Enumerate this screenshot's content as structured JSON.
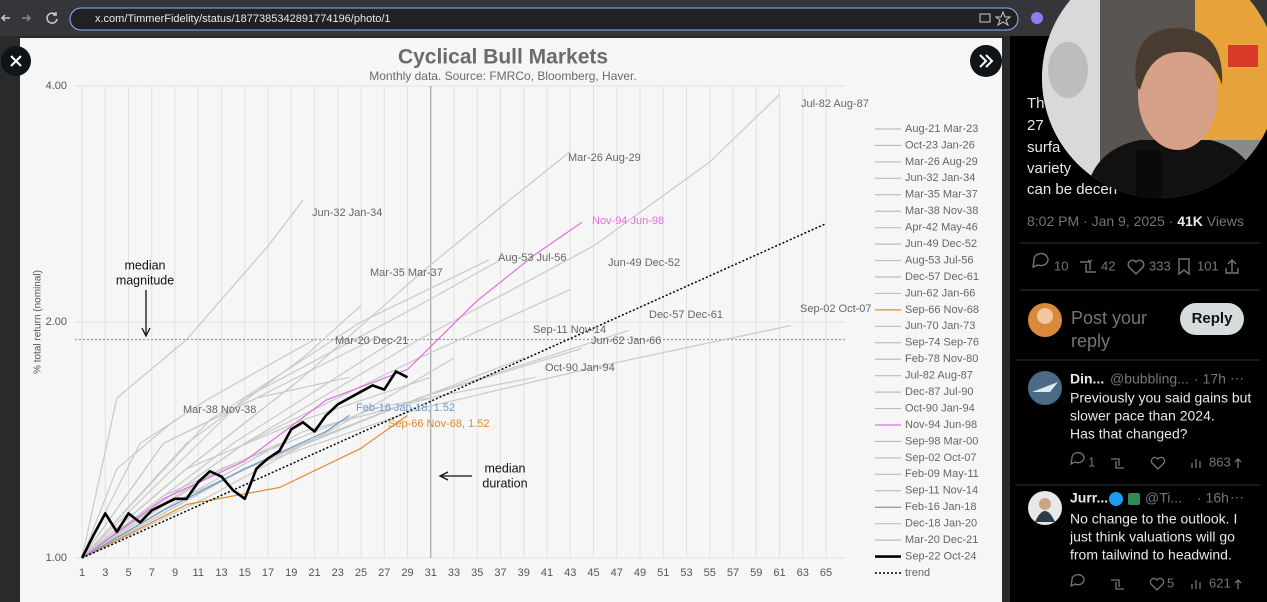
{
  "browser": {
    "url": "x.com/TimmerFidelity/status/1877385342891774196/photo/1"
  },
  "chart_data": {
    "type": "line",
    "title": "Cyclical Bull Markets",
    "subtitle": "Monthly data.  Source: FMRCo, Bloomberg, Haver.",
    "ylabel": "% total return (nominal)",
    "y_scale": "log",
    "xlim": [
      1,
      65
    ],
    "ylim": [
      1,
      4
    ],
    "xticks": [
      1,
      3,
      5,
      7,
      9,
      11,
      13,
      15,
      17,
      19,
      21,
      23,
      25,
      27,
      29,
      31,
      33,
      35,
      37,
      39,
      41,
      43,
      45,
      47,
      49,
      51,
      53,
      55,
      57,
      59,
      61,
      63,
      65
    ],
    "yticks": [
      {
        "value": 1,
        "label": "1.00"
      },
      {
        "value": 2,
        "label": "2.00"
      },
      {
        "value": 4,
        "label": "4.00"
      }
    ],
    "grid": true,
    "median_magnitude": 1.9,
    "median_duration": 31,
    "series": [
      {
        "name": "Aug-21 Mar-23",
        "color": "#c9c9c9",
        "x": [
          1,
          10,
          20
        ],
        "values": [
          1,
          1.3,
          1.7
        ]
      },
      {
        "name": "Oct-23 Jan-26",
        "color": "#c9c9c9",
        "x": [
          1,
          14,
          28
        ],
        "values": [
          1,
          1.4,
          1.9
        ]
      },
      {
        "name": "Mar-26 Aug-29",
        "color": "#c9c9c9",
        "x": [
          1,
          10,
          20,
          30,
          37,
          43
        ],
        "values": [
          1,
          1.3,
          1.7,
          2.3,
          2.8,
          3.3
        ]
      },
      {
        "name": "Jun-32 Jan-34",
        "color": "#c9c9c9",
        "x": [
          1,
          4,
          10,
          17,
          20
        ],
        "values": [
          1,
          1.6,
          1.9,
          2.5,
          2.86
        ]
      },
      {
        "name": "Mar-35 Mar-37",
        "color": "#c9c9c9",
        "x": [
          1,
          10,
          20,
          25
        ],
        "values": [
          1,
          1.4,
          1.8,
          2.1
        ]
      },
      {
        "name": "Mar-38 Nov-38",
        "color": "#c9c9c9",
        "x": [
          1,
          4,
          9
        ],
        "values": [
          1,
          1.3,
          1.5
        ]
      },
      {
        "name": "Apr-42 May-46",
        "color": "#c9c9c9",
        "x": [
          1,
          15,
          30,
          37
        ],
        "values": [
          1,
          1.6,
          2.1,
          2.4
        ]
      },
      {
        "name": "Jun-49 Dec-52",
        "color": "#c9c9c9",
        "x": [
          1,
          15,
          30,
          43
        ],
        "values": [
          1,
          1.4,
          1.8,
          2.2
        ]
      },
      {
        "name": "Aug-53 Jul-56",
        "color": "#c9c9c9",
        "x": [
          1,
          12,
          25,
          36
        ],
        "values": [
          1,
          1.5,
          2.0,
          2.4
        ]
      },
      {
        "name": "Dec-57 Dec-61",
        "color": "#c9c9c9",
        "x": [
          1,
          15,
          30,
          48
        ],
        "values": [
          1,
          1.3,
          1.6,
          1.95
        ]
      },
      {
        "name": "Jun-62 Jan-66",
        "color": "#c9c9c9",
        "x": [
          1,
          15,
          30,
          44
        ],
        "values": [
          1,
          1.3,
          1.6,
          1.85
        ]
      },
      {
        "name": "Sep-66 Nov-68",
        "color": "#e08a30",
        "x": [
          1,
          10,
          18,
          25,
          29
        ],
        "values": [
          1,
          1.17,
          1.23,
          1.38,
          1.52
        ]
      },
      {
        "name": "Jun-70 Jan-73",
        "color": "#c9c9c9",
        "x": [
          1,
          10,
          20,
          31
        ],
        "values": [
          1,
          1.3,
          1.5,
          1.7
        ]
      },
      {
        "name": "Sep-74 Sep-76",
        "color": "#c9c9c9",
        "x": [
          1,
          8,
          16,
          24
        ],
        "values": [
          1,
          1.4,
          1.6,
          1.7
        ]
      },
      {
        "name": "Feb-78 Nov-80",
        "color": "#c9c9c9",
        "x": [
          1,
          12,
          24,
          33
        ],
        "values": [
          1,
          1.2,
          1.5,
          1.8
        ]
      },
      {
        "name": "Jul-82 Aug-87",
        "color": "#c9c9c9",
        "x": [
          1,
          15,
          30,
          45,
          55,
          61
        ],
        "values": [
          1,
          1.4,
          1.9,
          2.5,
          3.2,
          3.9
        ]
      },
      {
        "name": "Dec-87 Jul-90",
        "color": "#c9c9c9",
        "x": [
          1,
          10,
          20,
          31
        ],
        "values": [
          1,
          1.2,
          1.45,
          1.6
        ]
      },
      {
        "name": "Oct-90 Jan-94",
        "color": "#c9c9c9",
        "x": [
          1,
          13,
          26,
          40
        ],
        "values": [
          1,
          1.3,
          1.55,
          1.7
        ]
      },
      {
        "name": "Nov-94 Jun-98",
        "color": "#e070e0",
        "x": [
          1,
          8,
          15,
          22,
          29,
          35,
          40,
          44
        ],
        "values": [
          1,
          1.19,
          1.33,
          1.59,
          1.74,
          2.13,
          2.44,
          2.68
        ]
      },
      {
        "name": "Sep-98 Mar-00",
        "color": "#c9c9c9",
        "x": [
          1,
          8,
          18
        ],
        "values": [
          1,
          1.2,
          1.4
        ]
      },
      {
        "name": "Sep-02 Oct-07",
        "color": "#c9c9c9",
        "x": [
          1,
          15,
          30,
          45,
          62
        ],
        "values": [
          1,
          1.3,
          1.55,
          1.75,
          1.98
        ]
      },
      {
        "name": "Feb-09 May-11",
        "color": "#c9c9c9",
        "x": [
          1,
          8,
          16,
          26
        ],
        "values": [
          1,
          1.4,
          1.6,
          1.9
        ]
      },
      {
        "name": "Sep-11 Nov-14",
        "color": "#c9c9c9",
        "x": [
          1,
          10,
          20,
          39
        ],
        "values": [
          1,
          1.2,
          1.4,
          1.8
        ]
      },
      {
        "name": "Feb-16 Jan-18",
        "color": "#6a9ac8",
        "x": [
          1,
          8,
          15,
          22,
          24
        ],
        "values": [
          1,
          1.15,
          1.3,
          1.45,
          1.52
        ]
      },
      {
        "name": "Dec-18 Jan-20",
        "color": "#c9c9c9",
        "x": [
          1,
          7,
          13
        ],
        "values": [
          1,
          1.15,
          1.3
        ]
      },
      {
        "name": "Mar-20 Dec-21",
        "color": "#c9c9c9",
        "x": [
          1,
          6,
          12,
          21
        ],
        "values": [
          1,
          1.4,
          1.6,
          1.9
        ]
      },
      {
        "name": "Sep-22 Oct-24",
        "color": "#000000",
        "line_style": "bold",
        "x": [
          1,
          2,
          3,
          4,
          5,
          6,
          7,
          8,
          9,
          10,
          11,
          12,
          13,
          14,
          15,
          16,
          17,
          18,
          19,
          20,
          21,
          22,
          23,
          24,
          25,
          26,
          27,
          28,
          29
        ],
        "values": [
          1,
          1.07,
          1.14,
          1.08,
          1.14,
          1.11,
          1.15,
          1.17,
          1.19,
          1.19,
          1.25,
          1.29,
          1.27,
          1.22,
          1.19,
          1.3,
          1.34,
          1.37,
          1.46,
          1.49,
          1.45,
          1.52,
          1.57,
          1.6,
          1.63,
          1.66,
          1.64,
          1.73,
          1.7
        ]
      },
      {
        "name": "trend",
        "color": "#000000",
        "line_style": "dotted",
        "x": [
          1,
          65
        ],
        "values": [
          1,
          2.67
        ]
      }
    ],
    "annotations": [
      {
        "text": "Jul-82 Aug-87",
        "color": "#666666"
      },
      {
        "text": "Mar-26 Aug-29",
        "color": "#666666"
      },
      {
        "text": "Nov-94 Jun-98",
        "color": "#e070e0"
      },
      {
        "text": "Jun-32 Jan-34",
        "color": "#666666"
      },
      {
        "text": "Aug-53 Jul-56",
        "color": "#666666"
      },
      {
        "text": "Jun-49 Dec-52",
        "color": "#666666"
      },
      {
        "text": "Mar-35 Mar-37",
        "color": "#666666"
      },
      {
        "text": "Dec-57 Dec-61",
        "color": "#666666"
      },
      {
        "text": "Sep-02 Oct-07",
        "color": "#666666"
      },
      {
        "text": "Sep-11 Nov-14",
        "color": "#666666"
      },
      {
        "text": "Mar-20 Dec-21",
        "color": "#666666"
      },
      {
        "text": "Jun-62 Jan-66",
        "color": "#666666"
      },
      {
        "text": "Oct-90 Jan-94",
        "color": "#666666"
      },
      {
        "text": "Mar-38 Nov-38",
        "color": "#666666"
      },
      {
        "text": "Feb-16 Jan-18, 1.52",
        "color": "#6a9ac8"
      },
      {
        "text": "Sep-66 Nov-68, 1.52",
        "color": "#e08a30"
      },
      {
        "text": "median",
        "color": "#111111"
      },
      {
        "text": "magnitude",
        "color": "#111111"
      },
      {
        "text": "median",
        "color": "#111111"
      },
      {
        "text": "duration",
        "color": "#111111"
      }
    ]
  },
  "tweet": {
    "text_lines": [
      "Th",
      "27",
      "surfa",
      "variety",
      "can be decen"
    ],
    "time": "8:02 PM · Jan 9, 2025 · ",
    "views_count": "41K",
    "views_label": "Views",
    "stats": {
      "replies": 10,
      "reposts": 42,
      "likes": 333,
      "bookmarks": 101
    },
    "reply_placeholder": [
      "Post your",
      "reply"
    ],
    "reply_button": "Reply"
  },
  "replies": [
    {
      "name": "Din...",
      "handle": "@bubbling...",
      "age": "· 17h",
      "more": "···",
      "text_lines": [
        "Previously you said gains but",
        "slower pace than 2024.",
        "Has that changed?"
      ],
      "replies": 1,
      "views": 863
    },
    {
      "name": "Jurr...",
      "handle": "@Ti...",
      "age": "· 16h",
      "more": "···",
      "text_lines": [
        "No change to the outlook.  I",
        "just think valuations will go",
        "from tailwind to headwind."
      ],
      "likes": 5,
      "views": 621
    }
  ]
}
